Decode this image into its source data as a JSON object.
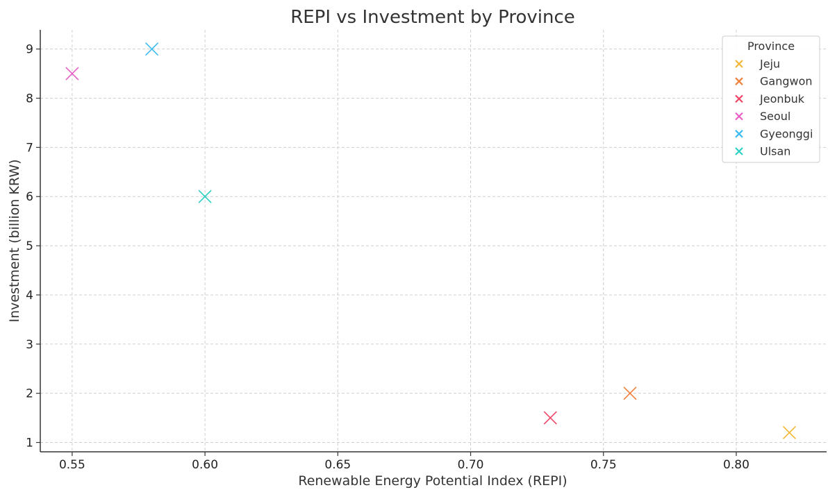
{
  "chart_data": {
    "type": "scatter",
    "title": "REPI vs Investment by Province",
    "xlabel": "Renewable Energy Potential Index (REPI)",
    "ylabel": "Investment (billion KRW)",
    "xlim": [
      0.538,
      0.834
    ],
    "ylim": [
      0.81,
      9.39
    ],
    "xticks": [
      0.55,
      0.6,
      0.65,
      0.7,
      0.75,
      0.8
    ],
    "xtick_labels": [
      "0.55",
      "0.60",
      "0.65",
      "0.70",
      "0.75",
      "0.80"
    ],
    "yticks": [
      1,
      2,
      3,
      4,
      5,
      6,
      7,
      8,
      9
    ],
    "ytick_labels": [
      "1",
      "2",
      "3",
      "4",
      "5",
      "6",
      "7",
      "8",
      "9"
    ],
    "grid": true,
    "marker": "x",
    "legend": {
      "title": "Province",
      "placement": "top-right"
    },
    "series": [
      {
        "name": "Jeju",
        "color": "#f2b632",
        "x": [
          0.82
        ],
        "y": [
          1.2
        ]
      },
      {
        "name": "Gangwon",
        "color": "#f07f3c",
        "x": [
          0.76
        ],
        "y": [
          2.0
        ]
      },
      {
        "name": "Jeonbuk",
        "color": "#ee4466",
        "x": [
          0.73
        ],
        "y": [
          1.5
        ]
      },
      {
        "name": "Seoul",
        "color": "#e65fc6",
        "x": [
          0.55
        ],
        "y": [
          8.5
        ]
      },
      {
        "name": "Gyeonggi",
        "color": "#3cbcf0",
        "x": [
          0.58
        ],
        "y": [
          9.0
        ]
      },
      {
        "name": "Ulsan",
        "color": "#2ccfc4",
        "x": [
          0.6
        ],
        "y": [
          6.0
        ]
      }
    ]
  }
}
